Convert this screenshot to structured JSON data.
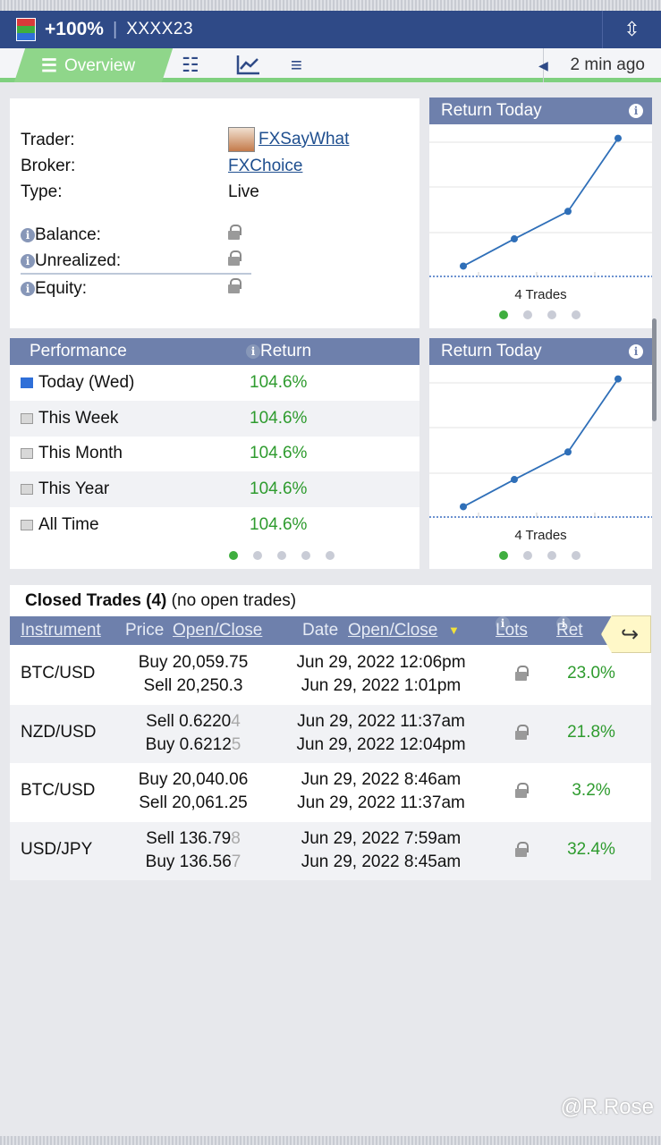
{
  "header": {
    "gain": "+100%",
    "separator": "|",
    "account": "XXXX23",
    "flag_colors": [
      "#d93a3a",
      "#3fae3f",
      "#2f6fd8"
    ]
  },
  "tabs": {
    "overview": "Overview",
    "icons": [
      "list-icon",
      "chart-line-icon",
      "menu-icon"
    ],
    "updated": "2 min ago"
  },
  "info": {
    "trader_label": "Trader:",
    "trader_value": "FXSayWhat",
    "broker_label": "Broker:",
    "broker_value": "FXChoice",
    "type_label": "Type:",
    "type_value": "Live",
    "balance_label": "Balance:",
    "unrealized_label": "Unrealized:",
    "equity_label": "Equity:"
  },
  "chart_card_1": {
    "title": "Return Today",
    "trades_label": "4 Trades",
    "active_dot": 0,
    "dot_count": 4
  },
  "chart_card_2": {
    "title": "Return Today",
    "trades_label": "4 Trades",
    "active_dot": 0,
    "dot_count": 4
  },
  "chart_data": [
    {
      "type": "line",
      "title": "Return Today",
      "x": [
        1,
        2,
        3,
        4
      ],
      "y": [
        3.2,
        24.8,
        46.6,
        104.6
      ],
      "grid": true,
      "legend": "none"
    },
    {
      "type": "line",
      "title": "Return Today",
      "x": [
        1,
        2,
        3,
        4
      ],
      "y": [
        3.2,
        24.8,
        46.6,
        104.6
      ],
      "grid": true,
      "legend": "none"
    }
  ],
  "performance": {
    "header_label": "Performance",
    "header_return": "Return",
    "rows": [
      {
        "label": "Today (Wed)",
        "value": "104.6%"
      },
      {
        "label": "This Week",
        "value": "104.6%"
      },
      {
        "label": "This Month",
        "value": "104.6%"
      },
      {
        "label": "This Year",
        "value": "104.6%"
      },
      {
        "label": "All Time",
        "value": "104.6%"
      }
    ],
    "active_dot": 0,
    "dot_count": 5
  },
  "trades": {
    "title": "Closed Trades (4)",
    "subtitle": "(no open trades)",
    "headers": {
      "instrument": "Instrument",
      "price": "Price",
      "price_oc": "Open/Close",
      "date": "Date",
      "date_oc": "Open/Close",
      "lots": "Lots",
      "ret": "Ret"
    },
    "rows": [
      {
        "instrument": "BTC/USD",
        "price_open": "Buy 20,059.75",
        "price_close": "Sell 20,250.3",
        "date_open": "Jun 29, 2022 12:06pm",
        "date_close": "Jun 29, 2022 1:01pm",
        "ret": "23.0%"
      },
      {
        "instrument": "NZD/USD",
        "price_open": "Sell 0.6220",
        "price_open_faded": "4",
        "price_close": "Buy 0.6212",
        "price_close_faded": "5",
        "date_open": "Jun 29, 2022 11:37am",
        "date_close": "Jun 29, 2022 12:04pm",
        "ret": "21.8%"
      },
      {
        "instrument": "BTC/USD",
        "price_open": "Buy 20,040.06",
        "price_close": "Sell 20,061.25",
        "date_open": "Jun 29, 2022 8:46am",
        "date_close": "Jun 29, 2022 11:37am",
        "ret": "3.2%"
      },
      {
        "instrument": "USD/JPY",
        "price_open": "Sell 136.79",
        "price_open_faded": "8",
        "price_close": "Buy 136.56",
        "price_close_faded": "7",
        "date_open": "Jun 29, 2022 7:59am",
        "date_close": "Jun 29, 2022 8:45am",
        "ret": "32.4%"
      }
    ]
  },
  "watermark": "@R.Rose"
}
